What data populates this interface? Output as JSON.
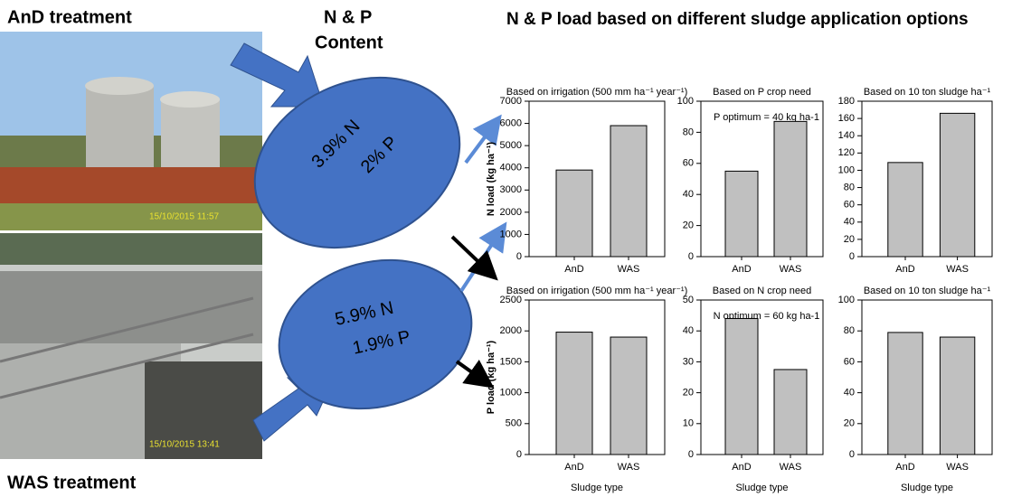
{
  "header": {
    "title": "N & P load based on different sludge application options",
    "top_label": "AnD treatment",
    "bottom_label": "WAS treatment",
    "content_label": [
      "N & P",
      "Content"
    ],
    "photos": [
      {
        "stamp": "15/10/2015 11:57"
      },
      {
        "stamp": "15/10/2015 13:41"
      }
    ],
    "ellipses": [
      {
        "lines": [
          "3.9% N",
          "2% P"
        ]
      },
      {
        "lines": [
          "5.9% N",
          "1.9% P"
        ]
      }
    ]
  },
  "chart_data": [
    {
      "type": "bar",
      "title": "Based on irrigation (500 mm ha⁻¹ year⁻¹)",
      "ylabel": "N load (kg ha⁻¹)",
      "categories": [
        "AnD",
        "WAS"
      ],
      "values": [
        3900,
        5900
      ],
      "color": "#c0c0c0",
      "ylim": [
        0,
        7000
      ],
      "yticks": [
        0,
        1000,
        2000,
        3000,
        4000,
        5000,
        6000,
        7000
      ]
    },
    {
      "type": "bar",
      "title": "Based on P crop need",
      "annotation": "P optimum = 40 kg ha-1",
      "categories": [
        "AnD",
        "WAS"
      ],
      "values": [
        55,
        87
      ],
      "color": "#c0c0c0",
      "ylim": [
        0,
        100
      ],
      "yticks": [
        0,
        20,
        40,
        60,
        80,
        100
      ]
    },
    {
      "type": "bar",
      "title": "Based on 10 ton sludge ha⁻¹",
      "categories": [
        "AnD",
        "WAS"
      ],
      "values": [
        109,
        166
      ],
      "color": "#c0c0c0",
      "ylim": [
        0,
        180
      ],
      "yticks": [
        0,
        20,
        40,
        60,
        80,
        100,
        120,
        140,
        160,
        180
      ]
    },
    {
      "type": "bar",
      "title": "Based on irrigation (500 mm ha⁻¹ year⁻¹)",
      "ylabel": "P load (kg ha⁻¹)",
      "xlabel": "Sludge type",
      "categories": [
        "AnD",
        "WAS"
      ],
      "values": [
        1980,
        1900
      ],
      "color": "#c0c0c0",
      "ylim": [
        0,
        2500
      ],
      "yticks": [
        0,
        500,
        1000,
        1500,
        2000,
        2500
      ]
    },
    {
      "type": "bar",
      "title": "Based on N crop need",
      "annotation": "N optimum = 60 kg ha-1",
      "xlabel": "Sludge type",
      "categories": [
        "AnD",
        "WAS"
      ],
      "values": [
        44,
        27.5
      ],
      "color": "#c0c0c0",
      "ylim": [
        0,
        50
      ],
      "yticks": [
        0,
        10,
        20,
        30,
        40,
        50
      ]
    },
    {
      "type": "bar",
      "title": "Based on 10 ton sludge ha⁻¹",
      "xlabel": "Sludge type",
      "categories": [
        "AnD",
        "WAS"
      ],
      "values": [
        79,
        76
      ],
      "color": "#c0c0c0",
      "ylim": [
        0,
        100
      ],
      "yticks": [
        0,
        20,
        40,
        60,
        80,
        100
      ]
    }
  ]
}
